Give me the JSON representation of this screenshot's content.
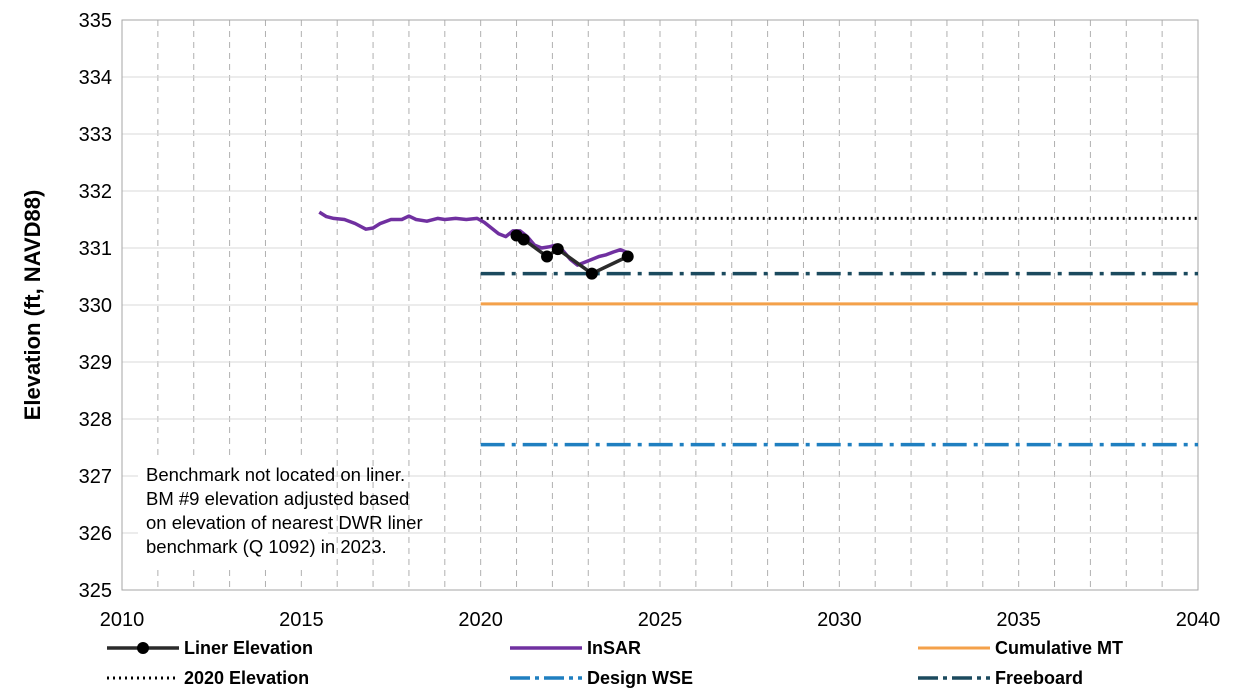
{
  "chart_data": {
    "type": "line",
    "title": "",
    "xlabel": "",
    "ylabel": "Elevation (ft, NAVD88)",
    "xlim": [
      2010,
      2040
    ],
    "ylim": [
      325,
      335
    ],
    "x_ticks": [
      "2010",
      "2015",
      "2020",
      "2025",
      "2030",
      "2035",
      "2040"
    ],
    "y_ticks": [
      "325",
      "326",
      "327",
      "328",
      "329",
      "330",
      "331",
      "332",
      "333",
      "334",
      "335"
    ],
    "grid": "vertical dashed every year; horizontal solid every 1 ft",
    "legend_position": "bottom",
    "annotation": [
      "Benchmark not located on liner.",
      "BM #9 elevation adjusted based",
      "on elevation of nearest DWR liner",
      "benchmark (Q 1092) in 2023."
    ],
    "series": [
      {
        "name": "Liner Elevation",
        "color": "#2b2b2b",
        "style": "solid-markers",
        "x": [
          2021.0,
          2021.2,
          2021.85,
          2022.15,
          2023.1,
          2024.1
        ],
        "y": [
          331.22,
          331.15,
          330.85,
          330.98,
          330.55,
          330.85
        ]
      },
      {
        "name": "InSAR",
        "color": "#7030a0",
        "style": "solid",
        "x": [
          2015.5,
          2015.7,
          2015.9,
          2016.2,
          2016.5,
          2016.8,
          2017.0,
          2017.2,
          2017.5,
          2017.8,
          2018.0,
          2018.2,
          2018.5,
          2018.8,
          2019.0,
          2019.3,
          2019.6,
          2019.9,
          2020.1,
          2020.3,
          2020.5,
          2020.7,
          2020.9,
          2021.1,
          2021.3,
          2021.5,
          2021.7,
          2021.9,
          2022.1,
          2022.3,
          2022.5,
          2022.7,
          2022.9,
          2023.1,
          2023.3,
          2023.5,
          2023.7,
          2023.9,
          2024.1
        ],
        "y": [
          331.63,
          331.55,
          331.52,
          331.5,
          331.43,
          331.33,
          331.35,
          331.43,
          331.5,
          331.5,
          331.56,
          331.5,
          331.47,
          331.52,
          331.5,
          331.52,
          331.5,
          331.52,
          331.45,
          331.35,
          331.25,
          331.2,
          331.3,
          331.3,
          331.2,
          331.05,
          331.0,
          331.02,
          331.05,
          330.95,
          330.8,
          330.7,
          330.75,
          330.8,
          330.85,
          330.88,
          330.93,
          330.97,
          330.92
        ]
      },
      {
        "name": "Cumulative MT",
        "color": "#f4a14a",
        "style": "solid",
        "x": [
          2020,
          2040
        ],
        "y": [
          330.02,
          330.02
        ]
      },
      {
        "name": "2020 Elevation",
        "color": "#000000",
        "style": "dotted",
        "x": [
          2020,
          2040
        ],
        "y": [
          331.52,
          331.52
        ]
      },
      {
        "name": "Design WSE",
        "color": "#1f7fc0",
        "style": "dash-dot",
        "x": [
          2020,
          2040
        ],
        "y": [
          327.55,
          327.55
        ]
      },
      {
        "name": "Freeboard",
        "color": "#1b4a5e",
        "style": "dash-dot",
        "x": [
          2020,
          2040
        ],
        "y": [
          330.55,
          330.55
        ]
      }
    ]
  }
}
